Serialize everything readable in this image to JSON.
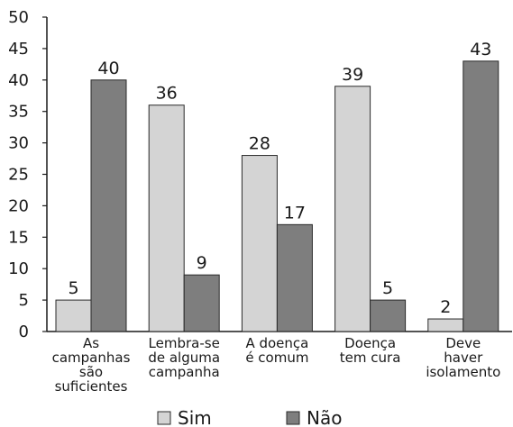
{
  "chart_data": {
    "type": "bar",
    "title": "",
    "xlabel": "",
    "ylabel": "",
    "ylim": [
      0,
      50
    ],
    "yticks": [
      0,
      5,
      10,
      15,
      20,
      25,
      30,
      35,
      40,
      45,
      50
    ],
    "grid": false,
    "legend_position": "bottom",
    "categories": [
      [
        "As",
        "campanhas",
        "são",
        "suficientes"
      ],
      [
        "Lembra-se",
        "de alguma",
        "campanha"
      ],
      [
        "A doença",
        "é comum"
      ],
      [
        "Doença",
        "tem cura"
      ],
      [
        "Deve",
        "haver",
        "isolamento"
      ]
    ],
    "series": [
      {
        "name": "Sim",
        "color": "#d4d4d4",
        "values": [
          5,
          36,
          28,
          39,
          2
        ]
      },
      {
        "name": "Não",
        "color": "#7e7e7e",
        "values": [
          40,
          9,
          17,
          5,
          43
        ]
      }
    ]
  }
}
